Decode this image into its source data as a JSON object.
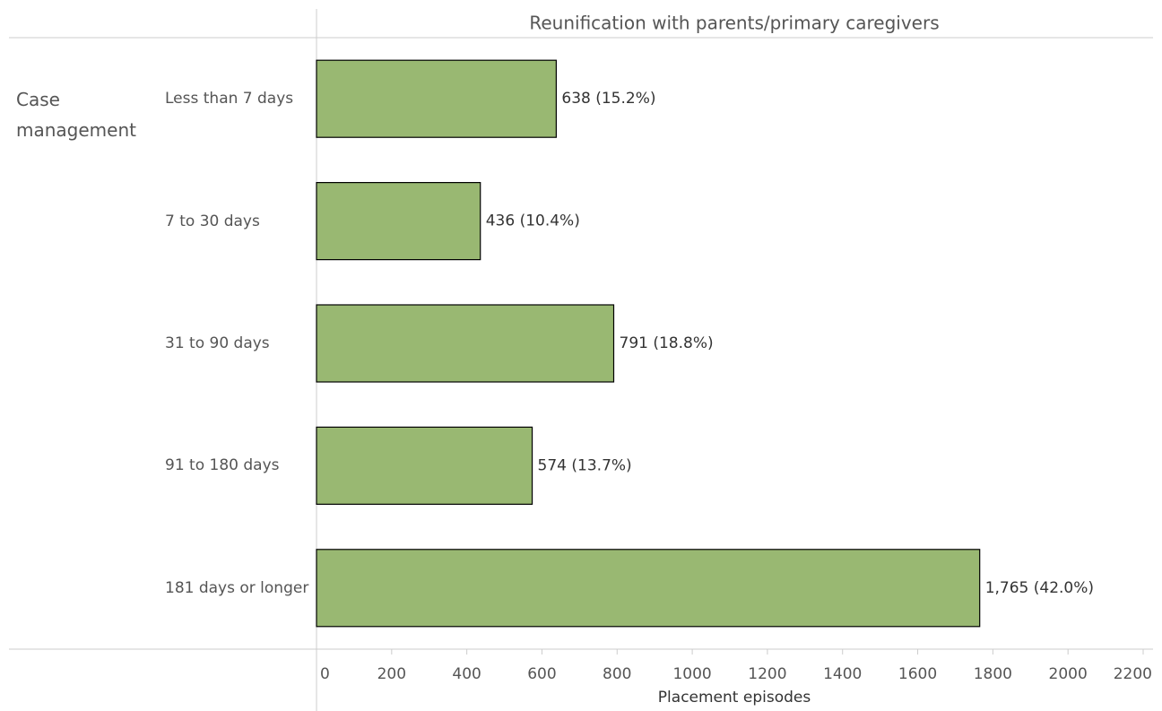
{
  "chart_data": {
    "type": "bar",
    "orientation": "horizontal",
    "title": "Reunification with parents/primary caregivers",
    "row_header": "Case management",
    "categories": [
      "Less than 7 days",
      "7 to 30 days",
      "31 to 90 days",
      "91 to 180 days",
      "181 days or longer"
    ],
    "values": [
      638,
      436,
      791,
      574,
      1765
    ],
    "value_labels": [
      "638 (15.2%)",
      "436 (10.4%)",
      "791 (18.8%)",
      "574 (13.7%)",
      "1,765 (42.0%)"
    ],
    "color": "#99b872",
    "xlim": [
      0,
      2200
    ],
    "xticks": [
      0,
      200,
      400,
      600,
      800,
      1000,
      1200,
      1400,
      1600,
      1800,
      2000,
      2200
    ],
    "xlabel": "Placement episodes"
  }
}
